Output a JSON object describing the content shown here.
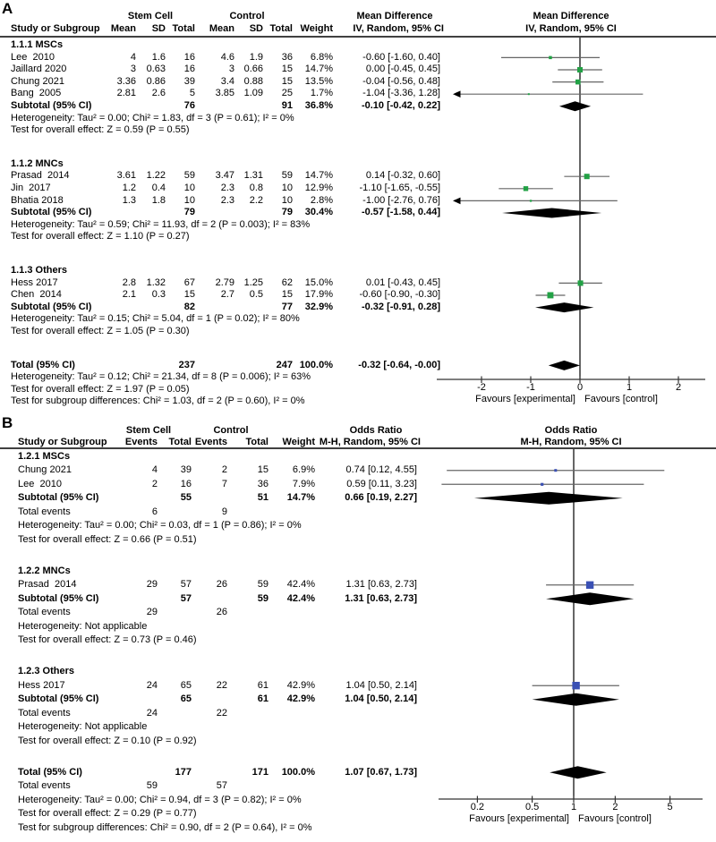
{
  "panels": [
    {
      "letter": "A",
      "group_headers": {
        "stem": "Stem Cell",
        "control": "Control",
        "effect": "Mean Difference"
      },
      "col_headers": {
        "study": "Study or Subgroup",
        "stats": [
          "Mean",
          "SD",
          "Total",
          "Mean",
          "SD",
          "Total"
        ],
        "weight": "Weight",
        "effect": "IV, Random, 95% CI"
      },
      "plot_headers": [
        "Mean Difference",
        "IV, Random, 95% CI"
      ],
      "axis": {
        "tick_labels": [
          "-2",
          "-1",
          "0",
          "1",
          "2"
        ],
        "tick_values": [
          -2,
          -1,
          0,
          1,
          2
        ],
        "favours_left": "Favours [experimental]",
        "favours_right": "Favours [control]"
      },
      "rows": [
        {
          "type": "section",
          "label": "1.1.1 MSCs"
        },
        {
          "type": "study",
          "name": "Lee  2010",
          "cells": [
            "4",
            "1.6",
            "16",
            "4.6",
            "1.9",
            "36"
          ],
          "weight": "6.8%",
          "w": 6.8,
          "ci": "-0.60 [-1.60, 0.40]",
          "est": -0.6,
          "lo": -1.6,
          "hi": 0.4
        },
        {
          "type": "study",
          "name": "Jaillard 2020",
          "cells": [
            "3",
            "0.63",
            "16",
            "3",
            "0.66",
            "15"
          ],
          "weight": "14.7%",
          "w": 14.7,
          "ci": "0.00 [-0.45, 0.45]",
          "est": 0.0,
          "lo": -0.45,
          "hi": 0.45
        },
        {
          "type": "study",
          "name": "Chung 2021",
          "cells": [
            "3.36",
            "0.86",
            "39",
            "3.4",
            "0.88",
            "15"
          ],
          "weight": "13.5%",
          "w": 13.5,
          "ci": "-0.04 [-0.56, 0.48]",
          "est": -0.04,
          "lo": -0.56,
          "hi": 0.48
        },
        {
          "type": "study",
          "name": "Bang  2005",
          "cells": [
            "2.81",
            "2.6",
            "5",
            "3.85",
            "1.09",
            "25"
          ],
          "weight": "1.7%",
          "w": 1.7,
          "ci": "-1.04 [-3.36, 1.28]",
          "est": -1.04,
          "lo": -3.36,
          "hi": 1.28
        },
        {
          "type": "subtotal",
          "label": "Subtotal (95% CI)",
          "cells": [
            "",
            "",
            "76",
            "",
            "",
            "91"
          ],
          "weight": "36.8%",
          "ci": "-0.10 [-0.42, 0.22]",
          "est": -0.1,
          "lo": -0.42,
          "hi": 0.22
        },
        {
          "type": "note",
          "text": "Heterogeneity: Tau² = 0.00; Chi² = 1.83, df = 3 (P = 0.61); I² = 0%"
        },
        {
          "type": "note",
          "text": "Test for overall effect: Z = 0.59 (P = 0.55)"
        },
        {
          "type": "spacer"
        },
        {
          "type": "section",
          "label": "1.1.2 MNCs"
        },
        {
          "type": "study",
          "name": "Prasad  2014",
          "cells": [
            "3.61",
            "1.22",
            "59",
            "3.47",
            "1.31",
            "59"
          ],
          "weight": "14.7%",
          "w": 14.7,
          "ci": "0.14 [-0.32, 0.60]",
          "est": 0.14,
          "lo": -0.32,
          "hi": 0.6
        },
        {
          "type": "study",
          "name": "Jin  2017",
          "cells": [
            "1.2",
            "0.4",
            "10",
            "2.3",
            "0.8",
            "10"
          ],
          "weight": "12.9%",
          "w": 12.9,
          "ci": "-1.10 [-1.65, -0.55]",
          "est": -1.1,
          "lo": -1.65,
          "hi": -0.55
        },
        {
          "type": "study",
          "name": "Bhatia 2018",
          "cells": [
            "1.3",
            "1.8",
            "10",
            "2.3",
            "2.2",
            "10"
          ],
          "weight": "2.8%",
          "w": 2.8,
          "ci": "-1.00 [-2.76, 0.76]",
          "est": -1.0,
          "lo": -2.76,
          "hi": 0.76
        },
        {
          "type": "subtotal",
          "label": "Subtotal (95% CI)",
          "cells": [
            "",
            "",
            "79",
            "",
            "",
            "79"
          ],
          "weight": "30.4%",
          "ci": "-0.57 [-1.58, 0.44]",
          "est": -0.57,
          "lo": -1.58,
          "hi": 0.44
        },
        {
          "type": "note",
          "text": "Heterogeneity: Tau² = 0.59; Chi² = 11.93, df = 2 (P = 0.003); I² = 83%"
        },
        {
          "type": "note",
          "text": "Test for overall effect: Z = 1.10 (P = 0.27)"
        },
        {
          "type": "spacer"
        },
        {
          "type": "section",
          "label": "1.1.3 Others"
        },
        {
          "type": "study",
          "name": "Hess 2017",
          "cells": [
            "2.8",
            "1.32",
            "67",
            "2.79",
            "1.25",
            "62"
          ],
          "weight": "15.0%",
          "w": 15.0,
          "ci": "0.01 [-0.43, 0.45]",
          "est": 0.01,
          "lo": -0.43,
          "hi": 0.45
        },
        {
          "type": "study",
          "name": "Chen  2014",
          "cells": [
            "2.1",
            "0.3",
            "15",
            "2.7",
            "0.5",
            "15"
          ],
          "weight": "17.9%",
          "w": 17.9,
          "ci": "-0.60 [-0.90, -0.30]",
          "est": -0.6,
          "lo": -0.9,
          "hi": -0.3
        },
        {
          "type": "subtotal",
          "label": "Subtotal (95% CI)",
          "cells": [
            "",
            "",
            "82",
            "",
            "",
            "77"
          ],
          "weight": "32.9%",
          "ci": "-0.32 [-0.91, 0.28]",
          "est": -0.32,
          "lo": -0.91,
          "hi": 0.28
        },
        {
          "type": "note",
          "text": "Heterogeneity: Tau² = 0.15; Chi² = 5.04, df = 1 (P = 0.02); I² = 80%"
        },
        {
          "type": "note",
          "text": "Test for overall effect: Z = 1.05 (P = 0.30)"
        },
        {
          "type": "spacer"
        },
        {
          "type": "total",
          "label": "Total (95% CI)",
          "cells": [
            "",
            "",
            "237",
            "",
            "",
            "247"
          ],
          "weight": "100.0%",
          "ci": "-0.32 [-0.64, -0.00]",
          "est": -0.32,
          "lo": -0.64,
          "hi": 0.0
        },
        {
          "type": "note",
          "text": "Heterogeneity: Tau² = 0.12; Chi² = 21.34, df = 8 (P = 0.006); I² = 63%"
        },
        {
          "type": "note",
          "text": "Test for overall effect: Z = 1.97 (P = 0.05)"
        },
        {
          "type": "note",
          "text": "Test for subgroup differences: Chi² = 1.03, df = 2 (P = 0.60), I² = 0%"
        }
      ]
    },
    {
      "letter": "B",
      "group_headers": {
        "stem": "Stem Cell",
        "control": "Control",
        "effect": "Odds Ratio"
      },
      "col_headers": {
        "study": "Study or Subgroup",
        "stats": [
          "Events",
          "Total",
          "Events",
          "Total"
        ],
        "weight": "Weight",
        "effect": "M-H, Random, 95% CI"
      },
      "plot_headers": [
        "Odds Ratio",
        "M-H, Random, 95% CI"
      ],
      "axis": {
        "tick_labels": [
          "0.2",
          "0.5",
          "1",
          "2",
          "5"
        ],
        "tick_values": [
          0.2,
          0.5,
          1,
          2,
          5
        ],
        "favours_left": "Favours [experimental]",
        "favours_right": "Favours [control]"
      },
      "rows": [
        {
          "type": "section",
          "label": "1.2.1 MSCs"
        },
        {
          "type": "study",
          "name": "Chung 2021",
          "cells": [
            "4",
            "39",
            "2",
            "15"
          ],
          "weight": "6.9%",
          "w": 6.9,
          "ci": "0.74 [0.12, 4.55]",
          "est": 0.74,
          "lo": 0.12,
          "hi": 4.55
        },
        {
          "type": "study",
          "name": "Lee  2010",
          "cells": [
            "2",
            "16",
            "7",
            "36"
          ],
          "weight": "7.9%",
          "w": 7.9,
          "ci": "0.59 [0.11, 3.23]",
          "est": 0.59,
          "lo": 0.11,
          "hi": 3.23
        },
        {
          "type": "subtotal",
          "label": "Subtotal (95% CI)",
          "cells": [
            "",
            "55",
            "",
            "51"
          ],
          "weight": "14.7%",
          "ci": "0.66 [0.19, 2.27]",
          "est": 0.66,
          "lo": 0.19,
          "hi": 2.27
        },
        {
          "type": "totalevents",
          "label": "Total events",
          "e1": "6",
          "e2": "9"
        },
        {
          "type": "note",
          "text": "Heterogeneity: Tau² = 0.00; Chi² = 0.03, df = 1 (P = 0.86); I² = 0%"
        },
        {
          "type": "note",
          "text": "Test for overall effect: Z = 0.66 (P = 0.51)"
        },
        {
          "type": "spacer"
        },
        {
          "type": "section",
          "label": "1.2.2 MNCs"
        },
        {
          "type": "study",
          "name": "Prasad  2014",
          "cells": [
            "29",
            "57",
            "26",
            "59"
          ],
          "weight": "42.4%",
          "w": 42.4,
          "ci": "1.31 [0.63, 2.73]",
          "est": 1.31,
          "lo": 0.63,
          "hi": 2.73
        },
        {
          "type": "subtotal",
          "label": "Subtotal (95% CI)",
          "cells": [
            "",
            "57",
            "",
            "59"
          ],
          "weight": "42.4%",
          "ci": "1.31 [0.63, 2.73]",
          "est": 1.31,
          "lo": 0.63,
          "hi": 2.73
        },
        {
          "type": "totalevents",
          "label": "Total events",
          "e1": "29",
          "e2": "26"
        },
        {
          "type": "note",
          "text": "Heterogeneity: Not applicable"
        },
        {
          "type": "note",
          "text": "Test for overall effect: Z = 0.73 (P = 0.46)"
        },
        {
          "type": "spacer"
        },
        {
          "type": "section",
          "label": "1.2.3 Others"
        },
        {
          "type": "study",
          "name": "Hess 2017",
          "cells": [
            "24",
            "65",
            "22",
            "61"
          ],
          "weight": "42.9%",
          "w": 42.9,
          "ci": "1.04 [0.50, 2.14]",
          "est": 1.04,
          "lo": 0.5,
          "hi": 2.14
        },
        {
          "type": "subtotal",
          "label": "Subtotal (95% CI)",
          "cells": [
            "",
            "65",
            "",
            "61"
          ],
          "weight": "42.9%",
          "ci": "1.04 [0.50, 2.14]",
          "est": 1.04,
          "lo": 0.5,
          "hi": 2.14
        },
        {
          "type": "totalevents",
          "label": "Total events",
          "e1": "24",
          "e2": "22"
        },
        {
          "type": "note",
          "text": "Heterogeneity: Not applicable"
        },
        {
          "type": "note",
          "text": "Test for overall effect: Z = 0.10 (P = 0.92)"
        },
        {
          "type": "spacer"
        },
        {
          "type": "total",
          "label": "Total (95% CI)",
          "cells": [
            "",
            "177",
            "",
            "171"
          ],
          "weight": "100.0%",
          "ci": "1.07 [0.67, 1.73]",
          "est": 1.07,
          "lo": 0.67,
          "hi": 1.73
        },
        {
          "type": "totalevents",
          "label": "Total events",
          "e1": "59",
          "e2": "57"
        },
        {
          "type": "note",
          "text": "Heterogeneity: Tau² = 0.00; Chi² = 0.94, df = 3 (P = 0.82); I² = 0%"
        },
        {
          "type": "note",
          "text": "Test for overall effect: Z = 0.29 (P = 0.77)"
        },
        {
          "type": "note",
          "text": "Test for subgroup differences: Chi² = 0.90, df = 2 (P = 0.64), I² = 0%"
        }
      ]
    }
  ],
  "colors": {
    "panel_a_marker": "#22a145",
    "panel_b_marker": "#3a50b4",
    "ci_line": "#666666",
    "diamond": "#000000"
  },
  "chart_data": [
    {
      "type": "forest",
      "title": "Mean Difference, IV, Random, 95% CI",
      "scale": "linear",
      "axis_ticks": [
        -2,
        -1,
        0,
        1,
        2
      ],
      "favours": [
        "Favours [experimental]",
        "Favours [control]"
      ],
      "studies": [
        {
          "name": "Lee 2010",
          "group": "1.1.1 MSCs",
          "est": -0.6,
          "ci": [
            -1.6,
            0.4
          ],
          "weight_pct": 6.8
        },
        {
          "name": "Jaillard 2020",
          "group": "1.1.1 MSCs",
          "est": 0.0,
          "ci": [
            -0.45,
            0.45
          ],
          "weight_pct": 14.7
        },
        {
          "name": "Chung 2021",
          "group": "1.1.1 MSCs",
          "est": -0.04,
          "ci": [
            -0.56,
            0.48
          ],
          "weight_pct": 13.5
        },
        {
          "name": "Bang 2005",
          "group": "1.1.1 MSCs",
          "est": -1.04,
          "ci": [
            -3.36,
            1.28
          ],
          "weight_pct": 1.7
        },
        {
          "name": "Prasad 2014",
          "group": "1.1.2 MNCs",
          "est": 0.14,
          "ci": [
            -0.32,
            0.6
          ],
          "weight_pct": 14.7
        },
        {
          "name": "Jin 2017",
          "group": "1.1.2 MNCs",
          "est": -1.1,
          "ci": [
            -1.65,
            -0.55
          ],
          "weight_pct": 12.9
        },
        {
          "name": "Bhatia 2018",
          "group": "1.1.2 MNCs",
          "est": -1.0,
          "ci": [
            -2.76,
            0.76
          ],
          "weight_pct": 2.8
        },
        {
          "name": "Hess 2017",
          "group": "1.1.3 Others",
          "est": 0.01,
          "ci": [
            -0.43,
            0.45
          ],
          "weight_pct": 15.0
        },
        {
          "name": "Chen 2014",
          "group": "1.1.3 Others",
          "est": -0.6,
          "ci": [
            -0.9,
            -0.3
          ],
          "weight_pct": 17.9
        }
      ],
      "subtotals": [
        {
          "group": "1.1.1 MSCs",
          "est": -0.1,
          "ci": [
            -0.42,
            0.22
          ],
          "weight_pct": 36.8
        },
        {
          "group": "1.1.2 MNCs",
          "est": -0.57,
          "ci": [
            -1.58,
            0.44
          ],
          "weight_pct": 30.4
        },
        {
          "group": "1.1.3 Others",
          "est": -0.32,
          "ci": [
            -0.91,
            0.28
          ],
          "weight_pct": 32.9
        }
      ],
      "total": {
        "est": -0.32,
        "ci": [
          -0.64,
          0.0
        ],
        "weight_pct": 100.0
      }
    },
    {
      "type": "forest",
      "title": "Odds Ratio, M-H, Random, 95% CI",
      "scale": "log",
      "axis_ticks": [
        0.2,
        0.5,
        1,
        2,
        5
      ],
      "favours": [
        "Favours [experimental]",
        "Favours [control]"
      ],
      "studies": [
        {
          "name": "Chung 2021",
          "group": "1.2.1 MSCs",
          "est": 0.74,
          "ci": [
            0.12,
            4.55
          ],
          "weight_pct": 6.9
        },
        {
          "name": "Lee 2010",
          "group": "1.2.1 MSCs",
          "est": 0.59,
          "ci": [
            0.11,
            3.23
          ],
          "weight_pct": 7.9
        },
        {
          "name": "Prasad 2014",
          "group": "1.2.2 MNCs",
          "est": 1.31,
          "ci": [
            0.63,
            2.73
          ],
          "weight_pct": 42.4
        },
        {
          "name": "Hess 2017",
          "group": "1.2.3 Others",
          "est": 1.04,
          "ci": [
            0.5,
            2.14
          ],
          "weight_pct": 42.9
        }
      ],
      "subtotals": [
        {
          "group": "1.2.1 MSCs",
          "est": 0.66,
          "ci": [
            0.19,
            2.27
          ],
          "weight_pct": 14.7
        },
        {
          "group": "1.2.2 MNCs",
          "est": 1.31,
          "ci": [
            0.63,
            2.73
          ],
          "weight_pct": 42.4
        },
        {
          "group": "1.2.3 Others",
          "est": 1.04,
          "ci": [
            0.5,
            2.14
          ],
          "weight_pct": 42.9
        }
      ],
      "total": {
        "est": 1.07,
        "ci": [
          0.67,
          1.73
        ],
        "weight_pct": 100.0
      }
    }
  ]
}
